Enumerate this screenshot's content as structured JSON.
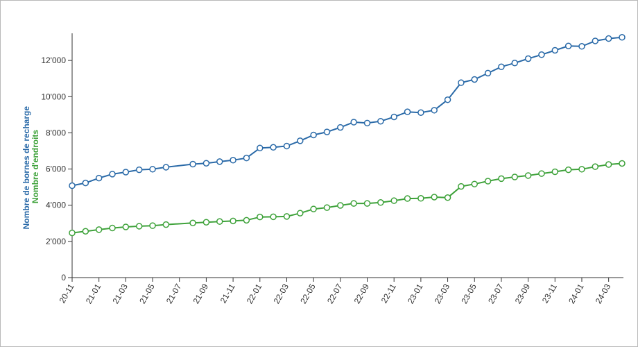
{
  "chart_data": {
    "type": "line",
    "ylabel_lines": [
      {
        "text": "Nombre de bornes de recharge",
        "color": "#2a6aa8"
      },
      {
        "text": "Nombre d'endroits",
        "color": "#3ea23a"
      }
    ],
    "ylim": [
      0,
      13500
    ],
    "yticks": [
      0,
      2000,
      4000,
      6000,
      8000,
      10000,
      12000
    ],
    "ytick_labels": [
      "0",
      "2'000",
      "4'000",
      "6'000",
      "8'000",
      "10'000",
      "12'000"
    ],
    "xlim": [
      "2020-11",
      "2024-04"
    ],
    "xtick_labels": [
      "20-11",
      "21-01",
      "21-03",
      "21-05",
      "21-07",
      "21-09",
      "21-11",
      "22-01",
      "22-03",
      "22-05",
      "22-07",
      "22-09",
      "22-11",
      "23-01",
      "23-03",
      "23-05",
      "23-07",
      "23-09",
      "23-11",
      "24-01",
      "24-03"
    ],
    "grid": false,
    "x": [
      "2020-11",
      "2020-12",
      "2021-01",
      "2021-02",
      "2021-03",
      "2021-04",
      "2021-05",
      "2021-06",
      "2021-08",
      "2021-09",
      "2021-10",
      "2021-11",
      "2021-12",
      "2022-01",
      "2022-02",
      "2022-03",
      "2022-04",
      "2022-05",
      "2022-06",
      "2022-07",
      "2022-08",
      "2022-09",
      "2022-10",
      "2022-11",
      "2022-12",
      "2023-01",
      "2023-02",
      "2023-03",
      "2023-04",
      "2023-05",
      "2023-06",
      "2023-07",
      "2023-08",
      "2023-09",
      "2023-10",
      "2023-11",
      "2023-12",
      "2024-01",
      "2024-02",
      "2024-03",
      "2024-04"
    ],
    "series": [
      {
        "name": "Nombre de bornes de recharge",
        "color": "#2a6aa8",
        "values": [
          5080,
          5230,
          5500,
          5720,
          5830,
          5960,
          5990,
          6100,
          6270,
          6320,
          6410,
          6490,
          6610,
          7160,
          7200,
          7270,
          7560,
          7880,
          8050,
          8300,
          8590,
          8540,
          8640,
          8880,
          9160,
          9120,
          9250,
          9830,
          10770,
          10950,
          11300,
          11650,
          11860,
          12100,
          12320,
          12560,
          12800,
          12780,
          13080,
          13210,
          13280
        ]
      },
      {
        "name": "Nombre d'endroits",
        "color": "#3ea23a",
        "values": [
          2470,
          2560,
          2650,
          2740,
          2800,
          2840,
          2870,
          2930,
          3020,
          3060,
          3100,
          3130,
          3170,
          3350,
          3360,
          3380,
          3560,
          3790,
          3870,
          3990,
          4100,
          4100,
          4150,
          4250,
          4370,
          4380,
          4450,
          4420,
          5040,
          5170,
          5330,
          5470,
          5560,
          5640,
          5750,
          5850,
          5960,
          5990,
          6130,
          6250,
          6310
        ]
      }
    ]
  }
}
